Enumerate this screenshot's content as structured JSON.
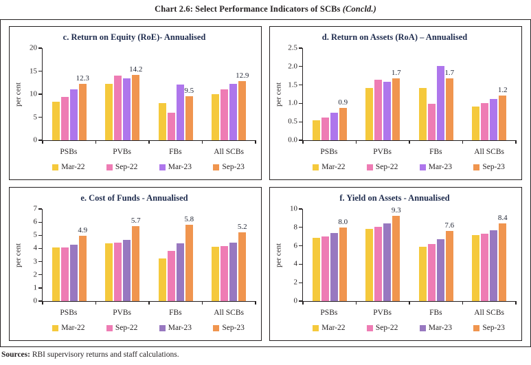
{
  "figure": {
    "title": "Chart 2.6: Select Performance Indicators of SCBs",
    "title_suffix": "(Concld.)"
  },
  "sources": {
    "label": "Sources:",
    "text": " RBI supervisory returns and staff calculations."
  },
  "colors": {
    "axis": "#231f20",
    "panel_title": "#1f2c4e",
    "mar22_yellow": "#F5C93C",
    "sep22_pink": "#EE7CB4",
    "mar23_violet_bright": "#AE76EC",
    "mar23_purple_muted": "#9878C0",
    "sep23_orange": "#F0954F"
  },
  "chart_data": [
    {
      "id": "c",
      "type": "bar",
      "title": "c. Return on Equity (RoE)- Annualised",
      "ylabel": "per cent",
      "ylim": [
        0,
        20
      ],
      "yticks": [
        "0",
        "5",
        "10",
        "15",
        "20"
      ],
      "grid": false,
      "legend_position": "bottom",
      "categories": [
        "PSBs",
        "PVBs",
        "FBs",
        "All SCBs"
      ],
      "series": [
        {
          "name": "Mar-22",
          "color": "#F5C93C",
          "values": [
            8.3,
            12.2,
            8.1,
            10.0
          ]
        },
        {
          "name": "Sep-22",
          "color": "#EE7CB4",
          "values": [
            9.4,
            14.1,
            5.9,
            11.1
          ]
        },
        {
          "name": "Mar-23",
          "color": "#AE76EC",
          "values": [
            11.1,
            13.5,
            12.1,
            12.3
          ]
        },
        {
          "name": "Sep-23",
          "color": "#F0954F",
          "values": [
            12.3,
            14.2,
            9.5,
            12.9
          ]
        }
      ],
      "bar_labels": {
        "series": "Sep-23",
        "values": [
          "12.3",
          "14.2",
          "9.5",
          "12.9"
        ]
      }
    },
    {
      "id": "d",
      "type": "bar",
      "title": "d. Return on Assets (RoA) – Annualised",
      "ylabel": "per cent",
      "ylim": [
        0,
        2.5
      ],
      "yticks": [
        "0.0",
        "0.5",
        "1.0",
        "1.5",
        "2.0",
        "2.5"
      ],
      "grid": false,
      "legend_position": "bottom",
      "categories": [
        "PSBs",
        "PVBs",
        "FBs",
        "All SCBs"
      ],
      "series": [
        {
          "name": "Mar-22",
          "color": "#F5C93C",
          "values": [
            0.55,
            1.42,
            1.42,
            0.91
          ]
        },
        {
          "name": "Sep-22",
          "color": "#EE7CB4",
          "values": [
            0.62,
            1.65,
            0.98,
            1.01
          ]
        },
        {
          "name": "Mar-23",
          "color": "#AE76EC",
          "values": [
            0.74,
            1.58,
            2.02,
            1.12
          ]
        },
        {
          "name": "Sep-23",
          "color": "#F0954F",
          "values": [
            0.88,
            1.68,
            1.68,
            1.21
          ]
        }
      ],
      "bar_labels": {
        "series": "Sep-23",
        "values": [
          "0.9",
          "1.7",
          "1.7",
          "1.2"
        ]
      }
    },
    {
      "id": "e",
      "type": "bar",
      "title": "e. Cost of Funds - Annualised",
      "ylabel": "per cent",
      "ylim": [
        0,
        7
      ],
      "yticks": [
        "0",
        "1",
        "2",
        "3",
        "4",
        "5",
        "6",
        "7"
      ],
      "grid": false,
      "legend_position": "bottom",
      "categories": [
        "PSBs",
        "PVBs",
        "FBs",
        "All SCBs"
      ],
      "series": [
        {
          "name": "Mar-22",
          "color": "#F5C93C",
          "values": [
            4.05,
            4.4,
            3.25,
            4.15
          ]
        },
        {
          "name": "Sep-22",
          "color": "#EE7CB4",
          "values": [
            4.1,
            4.45,
            3.8,
            4.2
          ]
        },
        {
          "name": "Mar-23",
          "color": "#9878C0",
          "values": [
            4.3,
            4.65,
            4.4,
            4.45
          ]
        },
        {
          "name": "Sep-23",
          "color": "#F0954F",
          "values": [
            4.95,
            5.7,
            5.8,
            5.25
          ]
        }
      ],
      "bar_labels": {
        "series": "Sep-23",
        "values": [
          "4.9",
          "5.7",
          "5.8",
          "5.2"
        ]
      }
    },
    {
      "id": "f",
      "type": "bar",
      "title": "f. Yield on Assets - Annualised",
      "ylabel": "per cent",
      "ylim": [
        0,
        10
      ],
      "yticks": [
        "0",
        "2",
        "4",
        "6",
        "8",
        "10"
      ],
      "grid": false,
      "legend_position": "bottom",
      "categories": [
        "PSBs",
        "PVBs",
        "FBs",
        "All SCBs"
      ],
      "series": [
        {
          "name": "Mar-22",
          "color": "#F5C93C",
          "values": [
            6.9,
            7.8,
            5.9,
            7.15
          ]
        },
        {
          "name": "Sep-22",
          "color": "#EE7CB4",
          "values": [
            7.05,
            8.05,
            6.2,
            7.35
          ]
        },
        {
          "name": "Mar-23",
          "color": "#9878C0",
          "values": [
            7.4,
            8.4,
            6.75,
            7.7
          ]
        },
        {
          "name": "Sep-23",
          "color": "#F0954F",
          "values": [
            8.0,
            9.25,
            7.6,
            8.45
          ]
        }
      ],
      "bar_labels": {
        "series": "Sep-23",
        "values": [
          "8.0",
          "9.3",
          "7.6",
          "8.4"
        ]
      }
    }
  ]
}
